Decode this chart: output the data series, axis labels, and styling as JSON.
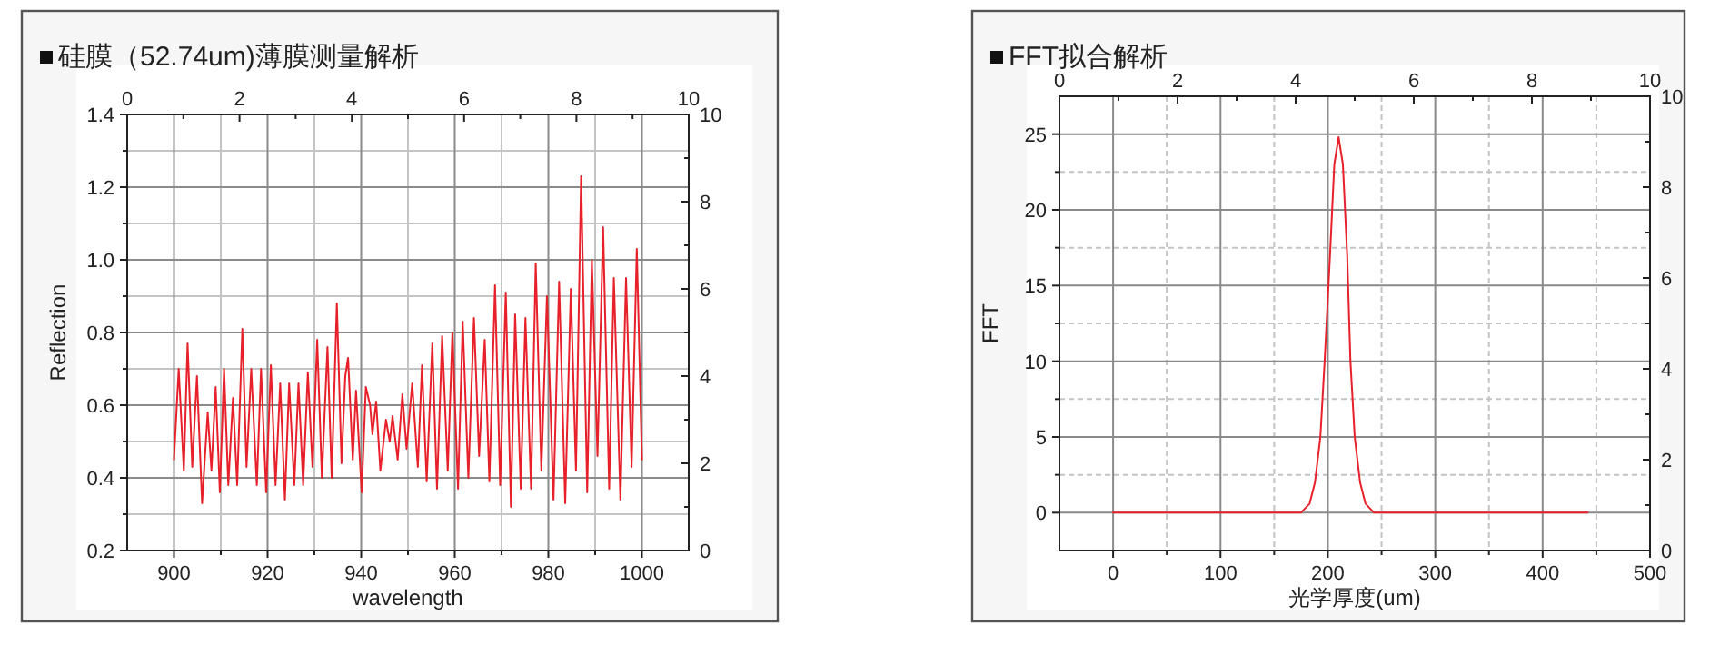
{
  "chart_data": [
    {
      "type": "line",
      "title": "硅膜（52.74um)薄膜测量解析",
      "xlabel": "wavelength",
      "ylabel": "Reflection",
      "xlim": [
        890,
        1010
      ],
      "xticks": [
        900,
        920,
        940,
        960,
        980,
        1000
      ],
      "ylim": [
        0.2,
        1.4
      ],
      "yticks": [
        0.2,
        0.4,
        0.6,
        0.8,
        {
          "value": 1,
          "label": "1.0"
        },
        1.2,
        1.4
      ],
      "x2lim": [
        0,
        10
      ],
      "x2ticks": [
        0,
        2,
        4,
        6,
        8,
        10
      ],
      "y2lim": [
        0,
        10
      ],
      "y2ticks": [
        0,
        2,
        4,
        6,
        8,
        10
      ],
      "grid": true,
      "series": [
        {
          "color": "#e8202a",
          "x": [
            900,
            901.0,
            902.1,
            902.9,
            903.9,
            904.9,
            906.0,
            907.2,
            908.0,
            908.9,
            909.8,
            910.7,
            911.6,
            912.6,
            913.5,
            914.6,
            915.5,
            916.5,
            917.7,
            918.6,
            919.7,
            920.7,
            921.7,
            922.7,
            923.7,
            924.6,
            925.7,
            926.6,
            927.6,
            928.6,
            929.6,
            930.6,
            931.6,
            932.8,
            933.7,
            934.8,
            935.8,
            936.6,
            937.2,
            938.2,
            938.9,
            940.1,
            941.0,
            941.9,
            942.4,
            943.2,
            944.1,
            945.3,
            946.1,
            946.7,
            947.8,
            948.8,
            949.7,
            950.9,
            952.1,
            953.0,
            954.0,
            955.2,
            956.2,
            957.3,
            958.5,
            959.5,
            960.7,
            961.7,
            962.9,
            964.1,
            965.2,
            966.4,
            967.4,
            968.6,
            969.7,
            970.9,
            972.0,
            972.9,
            974.1,
            975.1,
            976.3,
            977.3,
            978.5,
            979.7,
            981.1,
            982.3,
            983.6,
            984.8,
            985.9,
            987.0,
            988.3,
            989.3,
            990.5,
            991.7,
            993.0,
            994.0,
            995.4,
            996.6,
            997.8,
            998.9,
            1000
          ],
          "values": [
            0.45,
            0.7,
            0.42,
            0.77,
            0.43,
            0.68,
            0.33,
            0.58,
            0.42,
            0.65,
            0.36,
            0.7,
            0.38,
            0.62,
            0.38,
            0.81,
            0.43,
            0.7,
            0.38,
            0.7,
            0.36,
            0.71,
            0.38,
            0.66,
            0.34,
            0.66,
            0.38,
            0.66,
            0.38,
            0.69,
            0.43,
            0.78,
            0.4,
            0.76,
            0.4,
            0.88,
            0.44,
            0.68,
            0.73,
            0.45,
            0.64,
            0.36,
            0.65,
            0.6,
            0.52,
            0.61,
            0.42,
            0.56,
            0.5,
            0.57,
            0.45,
            0.63,
            0.48,
            0.66,
            0.43,
            0.71,
            0.39,
            0.77,
            0.37,
            0.79,
            0.42,
            0.8,
            0.37,
            0.83,
            0.4,
            0.84,
            0.46,
            0.78,
            0.39,
            0.93,
            0.38,
            0.91,
            0.32,
            0.85,
            0.37,
            0.84,
            0.37,
            0.99,
            0.42,
            0.9,
            0.34,
            0.94,
            0.33,
            0.92,
            0.42,
            1.23,
            0.36,
            1.0,
            0.46,
            1.09,
            0.37,
            0.95,
            0.34,
            0.95,
            0.43,
            1.03,
            0.45
          ]
        }
      ]
    },
    {
      "type": "line",
      "title": "FFT拟合解析",
      "xlabel": "光学厚度(um)",
      "ylabel": "FFT",
      "xlim": [
        -50,
        500
      ],
      "xticks": [
        0,
        100,
        200,
        300,
        400,
        500
      ],
      "ylim": [
        -2.5,
        27.5
      ],
      "yticks": [
        0,
        5,
        10,
        15,
        20,
        25
      ],
      "x2lim": [
        0,
        10
      ],
      "x2ticks": [
        0,
        2,
        4,
        6,
        8,
        10
      ],
      "y2lim": [
        0,
        10
      ],
      "y2ticks": [
        0,
        2,
        4,
        6,
        8,
        10
      ],
      "grid": true,
      "series": [
        {
          "color": "#e8202a",
          "x": [
            0,
            175,
            183,
            188,
            193,
            197,
            202,
            206,
            210,
            214,
            218,
            221,
            225,
            230,
            235,
            243,
            442
          ],
          "values": [
            0,
            0,
            0.6,
            2,
            5,
            10,
            17,
            23,
            24.8,
            23,
            17,
            10,
            5,
            2,
            0.6,
            0,
            0
          ]
        }
      ]
    }
  ]
}
